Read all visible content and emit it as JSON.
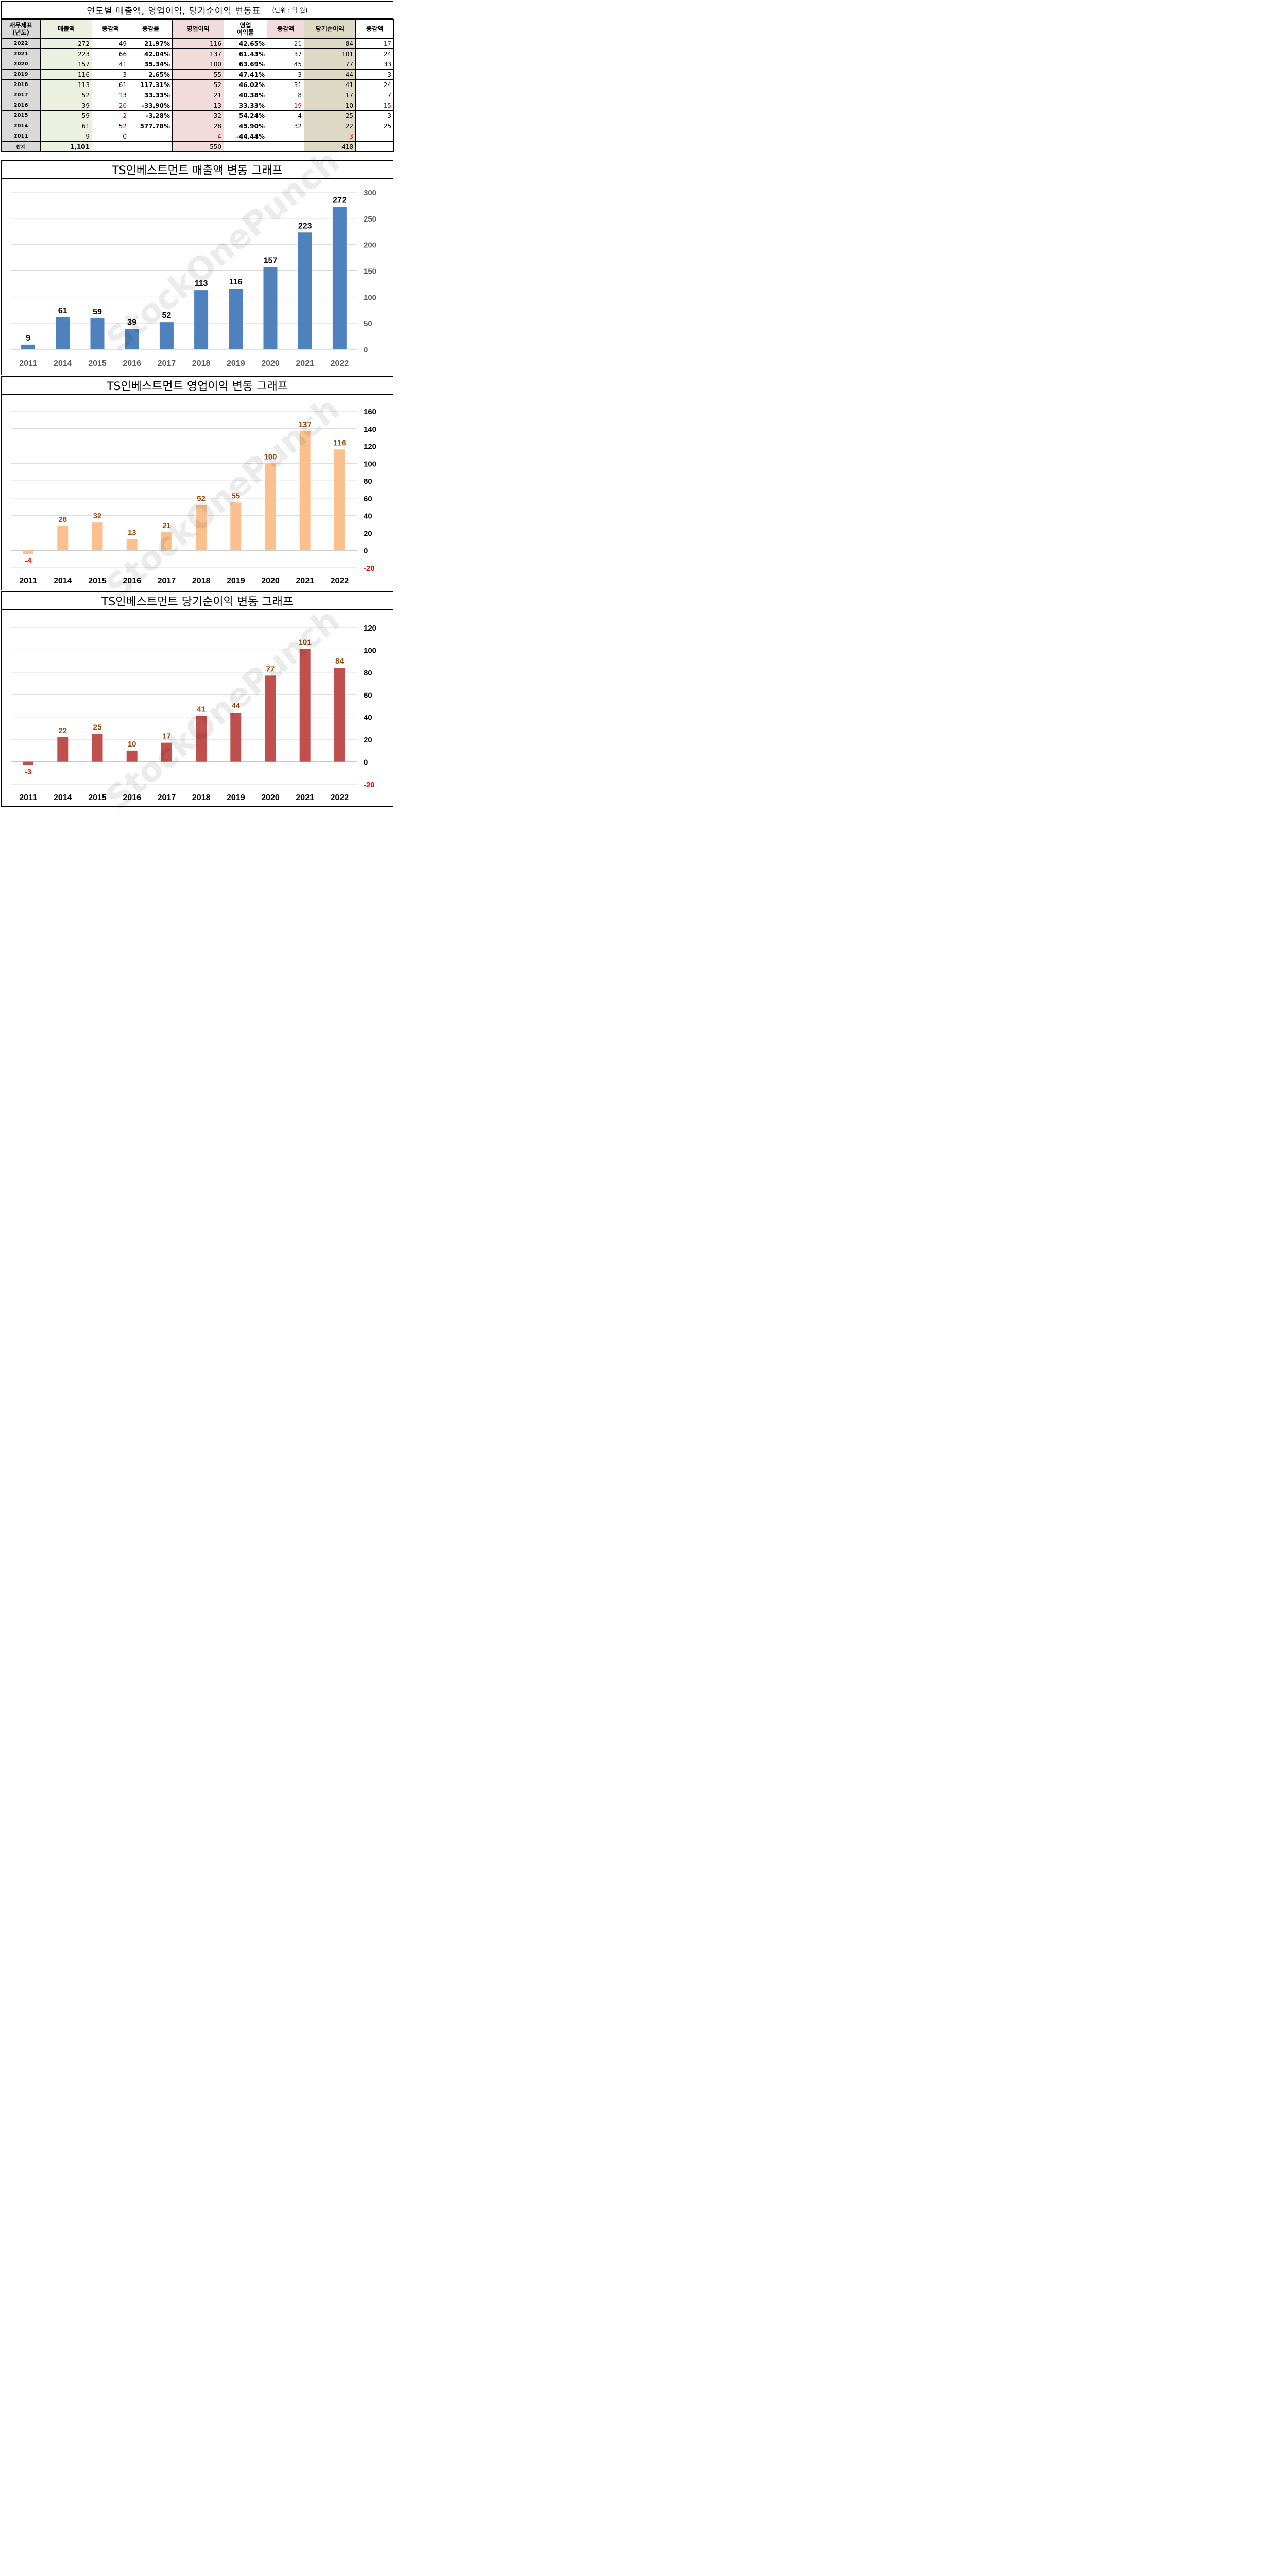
{
  "table": {
    "title": "연도별 매출액, 영업이익, 당기순이익 변동표",
    "unit": "(단위 : 억 원)",
    "headers": {
      "year": [
        "재무제표",
        "(년도)"
      ],
      "revenue": "매출액",
      "rev_change": "증감액",
      "rev_rate": "증감률",
      "op_income": "영업이익",
      "op_margin": [
        "영업",
        "이익률"
      ],
      "op_change": "증감액",
      "net_income": "당기순이익",
      "net_change": "증감액"
    },
    "rows": [
      {
        "year": "2022",
        "revenue": "272",
        "rev_change": "49",
        "rev_rate": "21.97%",
        "op_income": "116",
        "op_margin": "42.65%",
        "op_change": "-21",
        "net_income": "84",
        "net_change": "-17"
      },
      {
        "year": "2021",
        "revenue": "223",
        "rev_change": "66",
        "rev_rate": "42.04%",
        "op_income": "137",
        "op_margin": "61.43%",
        "op_change": "37",
        "net_income": "101",
        "net_change": "24"
      },
      {
        "year": "2020",
        "revenue": "157",
        "rev_change": "41",
        "rev_rate": "35.34%",
        "op_income": "100",
        "op_margin": "63.69%",
        "op_change": "45",
        "net_income": "77",
        "net_change": "33"
      },
      {
        "year": "2019",
        "revenue": "116",
        "rev_change": "3",
        "rev_rate": "2.65%",
        "op_income": "55",
        "op_margin": "47.41%",
        "op_change": "3",
        "net_income": "44",
        "net_change": "3"
      },
      {
        "year": "2018",
        "revenue": "113",
        "rev_change": "61",
        "rev_rate": "117.31%",
        "op_income": "52",
        "op_margin": "46.02%",
        "op_change": "31",
        "net_income": "41",
        "net_change": "24"
      },
      {
        "year": "2017",
        "revenue": "52",
        "rev_change": "13",
        "rev_rate": "33.33%",
        "op_income": "21",
        "op_margin": "40.38%",
        "op_change": "8",
        "net_income": "17",
        "net_change": "7"
      },
      {
        "year": "2016",
        "revenue": "39",
        "rev_change": "-20",
        "rev_rate": "-33.90%",
        "op_income": "13",
        "op_margin": "33.33%",
        "op_change": "-19",
        "net_income": "10",
        "net_change": "-15"
      },
      {
        "year": "2015",
        "revenue": "59",
        "rev_change": "-2",
        "rev_rate": "-3.28%",
        "op_income": "32",
        "op_margin": "54.24%",
        "op_change": "4",
        "net_income": "25",
        "net_change": "3"
      },
      {
        "year": "2014",
        "revenue": "61",
        "rev_change": "52",
        "rev_rate": "577.78%",
        "op_income": "28",
        "op_margin": "45.90%",
        "op_change": "32",
        "net_income": "22",
        "net_change": "25"
      },
      {
        "year": "2011",
        "revenue": "9",
        "rev_change": "0",
        "rev_rate": "",
        "op_income": "-4",
        "op_margin": "-44.44%",
        "op_change": "",
        "net_income": "-3",
        "net_change": ""
      },
      {
        "year": "합계",
        "revenue": "1,101",
        "rev_change": "",
        "rev_rate": "",
        "op_income": "550",
        "op_margin": "",
        "op_change": "",
        "net_income": "418",
        "net_change": ""
      }
    ]
  },
  "watermark": "StockOnePunch",
  "colors": {
    "revenue_bar": "#4f81bd",
    "op_bar": "#fac090",
    "net_bar": "#c0504d",
    "label_dark": "#000000",
    "label_brown": "#984807",
    "negative": "#ff0000",
    "grid": "#d9d9d9",
    "axis_text": "#595959"
  },
  "chart_data": [
    {
      "type": "bar",
      "title": "TS인베스트먼트 매출액 변동 그래프",
      "categories": [
        "2011",
        "2014",
        "2015",
        "2016",
        "2017",
        "2018",
        "2019",
        "2020",
        "2021",
        "2022"
      ],
      "series": [
        {
          "values": [
            9,
            61,
            59,
            39,
            52,
            113,
            116,
            157,
            223,
            272
          ]
        }
      ],
      "ylim": [
        0,
        300
      ],
      "yticks": [
        0,
        50,
        100,
        150,
        200,
        250,
        300
      ],
      "grid": true,
      "y_axis_side": "right"
    },
    {
      "type": "bar",
      "title": "TS인베스트먼트 영업이익 변동 그래프",
      "categories": [
        "2011",
        "2014",
        "2015",
        "2016",
        "2017",
        "2018",
        "2019",
        "2020",
        "2021",
        "2022"
      ],
      "series": [
        {
          "values": [
            -4,
            28,
            32,
            13,
            21,
            52,
            55,
            100,
            137,
            116
          ]
        }
      ],
      "ylim": [
        -20,
        160
      ],
      "yticks": [
        -20,
        0,
        20,
        40,
        60,
        80,
        100,
        120,
        140,
        160
      ],
      "grid": true,
      "y_axis_side": "right"
    },
    {
      "type": "bar",
      "title": "TS인베스트먼트 당기순이익 변동 그래프",
      "categories": [
        "2011",
        "2014",
        "2015",
        "2016",
        "2017",
        "2018",
        "2019",
        "2020",
        "2021",
        "2022"
      ],
      "series": [
        {
          "values": [
            -3,
            22,
            25,
            10,
            17,
            41,
            44,
            77,
            101,
            84
          ]
        }
      ],
      "ylim": [
        -20,
        120
      ],
      "yticks": [
        -20,
        0,
        20,
        40,
        60,
        80,
        100,
        120
      ],
      "grid": true,
      "y_axis_side": "right"
    }
  ]
}
